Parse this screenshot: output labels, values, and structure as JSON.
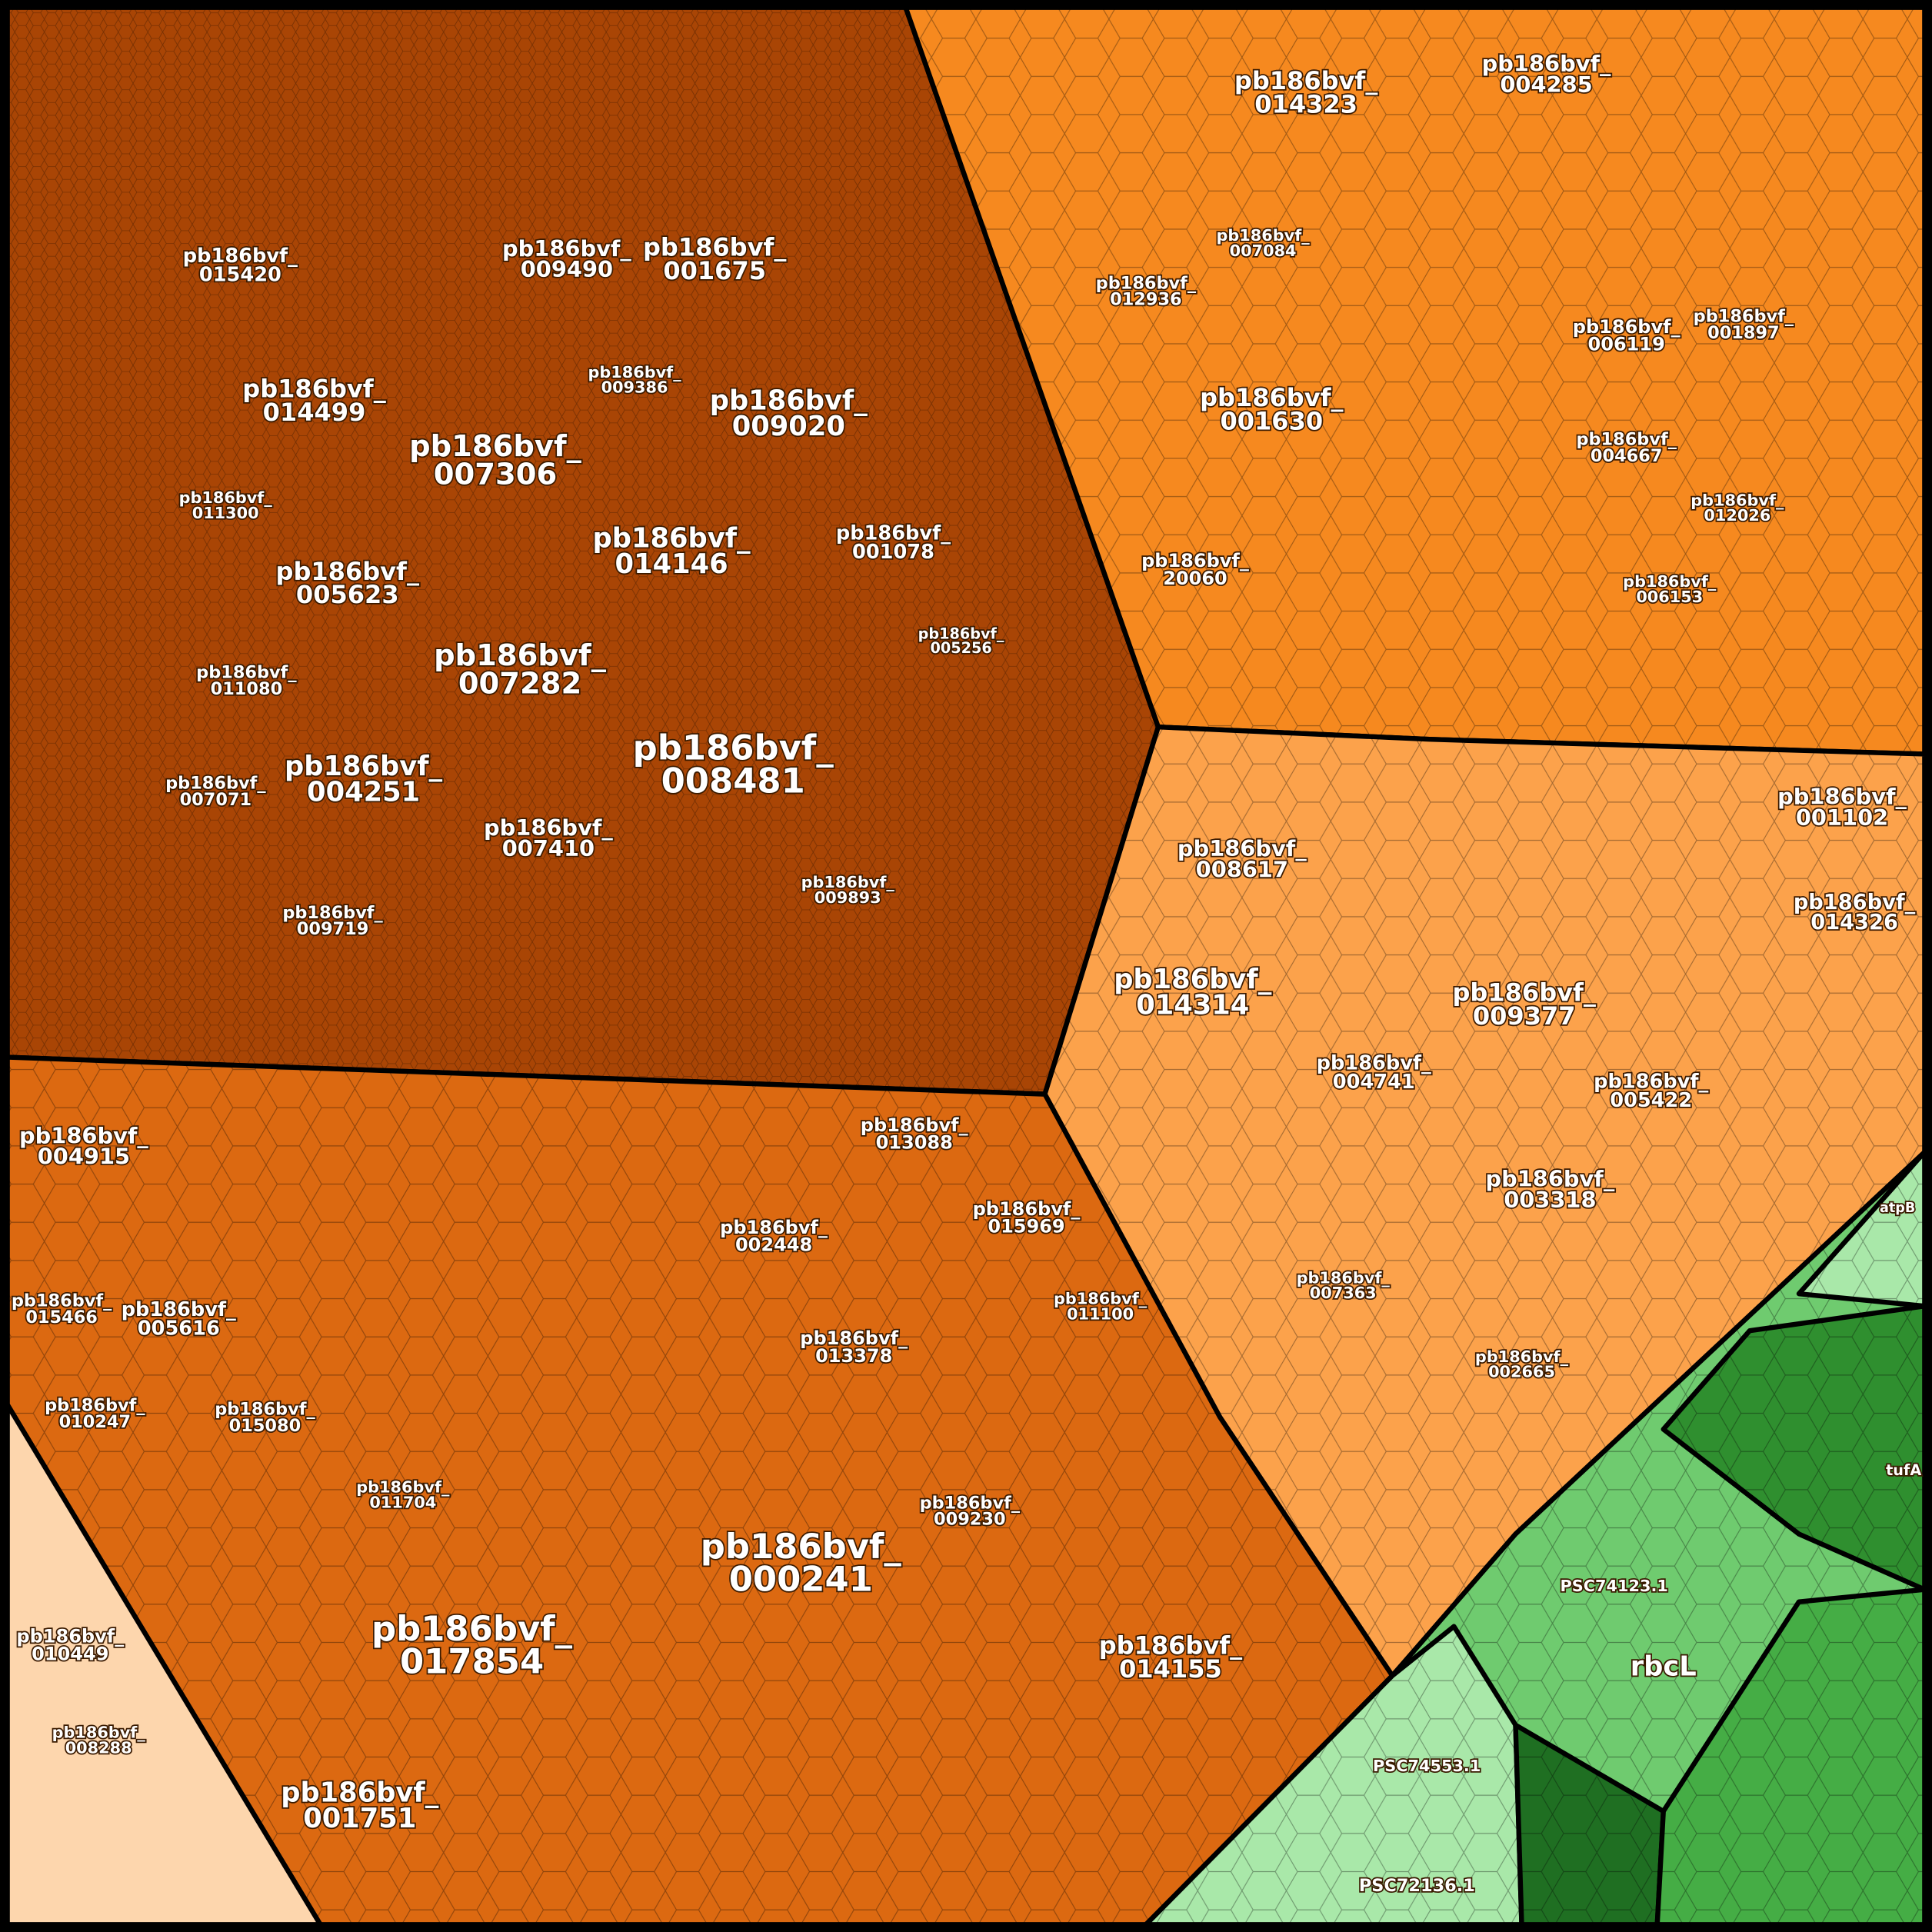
{
  "cells": [
    {
      "lines": [
        "pb186bvf_",
        "014499"
      ]
    },
    {
      "lines": [
        "pb186bvf_",
        "007306"
      ]
    },
    {
      "lines": [
        "pb186bvf_",
        "009020"
      ]
    },
    {
      "lines": [
        "pb186bvf_",
        "014146"
      ]
    },
    {
      "lines": [
        "pb186bvf_",
        "005623"
      ]
    },
    {
      "lines": [
        "pb186bvf_",
        "007282"
      ]
    },
    {
      "lines": [
        "pb186bvf_",
        "008481"
      ]
    },
    {
      "lines": [
        "pb186bvf_",
        "004251"
      ]
    },
    {
      "lines": [
        "pb186bvf_",
        "007410"
      ]
    },
    {
      "lines": [
        "pb186bvf_",
        "009490"
      ]
    },
    {
      "lines": [
        "pb186bvf_",
        "001675"
      ]
    },
    {
      "lines": [
        "pb186bvf_",
        "015420"
      ]
    },
    {
      "lines": [
        "pb186bvf_",
        "001078"
      ]
    },
    {
      "lines": [
        "pb186bvf_",
        "011080"
      ]
    },
    {
      "lines": [
        "pb186bvf_",
        "007071"
      ]
    },
    {
      "lines": [
        "pb186bvf_",
        "009719"
      ]
    },
    {
      "lines": [
        "pb186bvf_",
        "009893"
      ]
    },
    {
      "lines": [
        "pb186bvf_",
        "005256"
      ]
    },
    {
      "lines": [
        "pb186bvf_",
        "009386"
      ]
    },
    {
      "lines": [
        "pb186bvf_",
        "011300"
      ]
    },
    {
      "lines": [
        "pb186bvf_",
        "014323"
      ]
    },
    {
      "lines": [
        "pb186bvf_",
        "004285"
      ]
    },
    {
      "lines": [
        "pb186bvf_",
        "001630"
      ]
    },
    {
      "lines": [
        "pb186bvf_",
        "012936"
      ]
    },
    {
      "lines": [
        "pb186bvf_",
        "007084"
      ]
    },
    {
      "lines": [
        "pb186bvf_",
        "006119"
      ]
    },
    {
      "lines": [
        "pb186bvf_",
        "001897"
      ]
    },
    {
      "lines": [
        "pb186bvf_",
        "20060"
      ]
    },
    {
      "lines": [
        "pb186bvf_",
        "004667"
      ]
    },
    {
      "lines": [
        "pb186bvf_",
        "012026"
      ]
    },
    {
      "lines": [
        "pb186bvf_",
        "006153"
      ]
    },
    {
      "lines": [
        "pb186bvf_",
        "008617"
      ]
    },
    {
      "lines": [
        "pb186bvf_",
        "014314"
      ]
    },
    {
      "lines": [
        "pb186bvf_",
        "009377"
      ]
    },
    {
      "lines": [
        "pb186bvf_",
        "004741"
      ]
    },
    {
      "lines": [
        "pb186bvf_",
        "005422"
      ]
    },
    {
      "lines": [
        "pb186bvf_",
        "003318"
      ]
    },
    {
      "lines": [
        "pb186bvf_",
        "001102"
      ]
    },
    {
      "lines": [
        "pb186bvf_",
        "014326"
      ]
    },
    {
      "lines": [
        "pb186bvf_",
        "002665"
      ]
    },
    {
      "lines": [
        "pb186bvf_",
        "007363"
      ]
    },
    {
      "lines": [
        "pb186bvf_",
        "004915"
      ]
    },
    {
      "lines": [
        "pb186bvf_",
        "005616"
      ]
    },
    {
      "lines": [
        "pb186bvf_",
        "015466"
      ]
    },
    {
      "lines": [
        "pb186bvf_",
        "010247"
      ]
    },
    {
      "lines": [
        "pb186bvf_",
        "015080"
      ]
    },
    {
      "lines": [
        "pb186bvf_",
        "013088"
      ]
    },
    {
      "lines": [
        "pb186bvf_",
        "002448"
      ]
    },
    {
      "lines": [
        "pb186bvf_",
        "015969"
      ]
    },
    {
      "lines": [
        "pb186bvf_",
        "013378"
      ]
    },
    {
      "lines": [
        "pb186bvf_",
        "011100"
      ]
    },
    {
      "lines": [
        "pb186bvf_",
        "011704"
      ]
    },
    {
      "lines": [
        "pb186bvf_",
        "017854"
      ]
    },
    {
      "lines": [
        "pb186bvf_",
        "000241"
      ]
    },
    {
      "lines": [
        "pb186bvf_",
        "014155"
      ]
    },
    {
      "lines": [
        "pb186bvf_",
        "001751"
      ]
    },
    {
      "lines": [
        "pb186bvf_",
        "009230"
      ]
    },
    {
      "lines": [
        "pb186bvf_",
        "010449"
      ]
    },
    {
      "lines": [
        "pb186bvf_",
        "008288"
      ]
    },
    {
      "lines": [
        "rbcL"
      ]
    },
    {
      "lines": [
        "PSC74123.1"
      ]
    },
    {
      "lines": [
        "PSC74553.1"
      ]
    },
    {
      "lines": [
        "PSC72136.1"
      ]
    },
    {
      "lines": [
        "tufA"
      ]
    },
    {
      "lines": [
        "atpB"
      ]
    }
  ]
}
